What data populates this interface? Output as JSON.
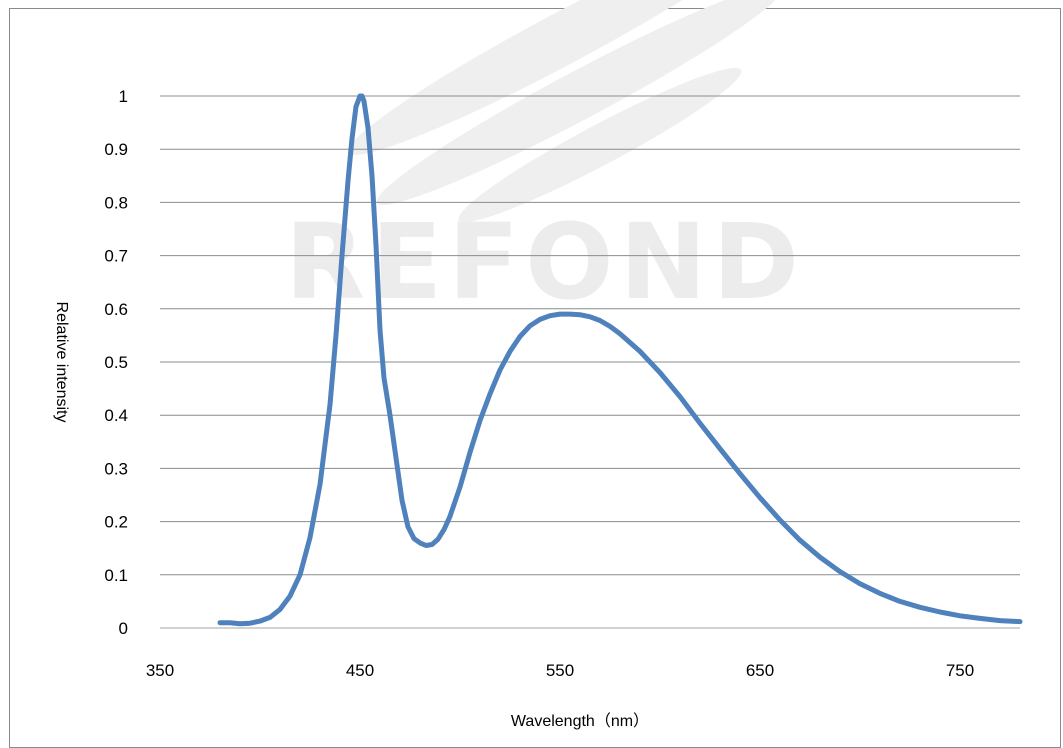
{
  "watermark": {
    "text": "REFOND",
    "color": "#ececec"
  },
  "chart_data": {
    "type": "line",
    "title": "",
    "xlabel": "Wavelength（nm）",
    "ylabel": "Relative intensity",
    "xlim": [
      350,
      780
    ],
    "ylim": [
      0,
      1
    ],
    "x_ticks": [
      "350",
      "450",
      "550",
      "650",
      "750"
    ],
    "y_ticks": [
      "0",
      "0.1",
      "0.2",
      "0.3",
      "0.4",
      "0.5",
      "0.6",
      "0.7",
      "0.8",
      "0.9",
      "1"
    ],
    "grid": "horizontal",
    "legend": "none",
    "series_color": "#4f81bd",
    "series": [
      {
        "name": "",
        "x": [
          380,
          385,
          390,
          395,
          400,
          405,
          410,
          415,
          420,
          425,
          430,
          435,
          438,
          441,
          444,
          446,
          448,
          450,
          451,
          452,
          454,
          456,
          458,
          460,
          462,
          465,
          468,
          471,
          474,
          477,
          480,
          483,
          486,
          489,
          492,
          495,
          500,
          505,
          510,
          515,
          520,
          525,
          530,
          535,
          540,
          545,
          550,
          555,
          560,
          565,
          570,
          575,
          580,
          590,
          600,
          610,
          620,
          630,
          640,
          650,
          660,
          670,
          680,
          690,
          700,
          710,
          720,
          730,
          740,
          750,
          760,
          770,
          780
        ],
        "y": [
          0.01,
          0.01,
          0.008,
          0.009,
          0.013,
          0.02,
          0.035,
          0.06,
          0.1,
          0.17,
          0.27,
          0.42,
          0.55,
          0.7,
          0.84,
          0.92,
          0.98,
          1.0,
          1.0,
          0.99,
          0.94,
          0.85,
          0.72,
          0.56,
          0.47,
          0.4,
          0.32,
          0.24,
          0.19,
          0.168,
          0.16,
          0.155,
          0.157,
          0.167,
          0.185,
          0.21,
          0.265,
          0.33,
          0.39,
          0.44,
          0.485,
          0.52,
          0.548,
          0.568,
          0.58,
          0.587,
          0.59,
          0.59,
          0.589,
          0.585,
          0.578,
          0.567,
          0.553,
          0.52,
          0.48,
          0.435,
          0.385,
          0.337,
          0.29,
          0.245,
          0.203,
          0.165,
          0.133,
          0.106,
          0.083,
          0.065,
          0.05,
          0.039,
          0.03,
          0.023,
          0.018,
          0.014,
          0.012
        ]
      }
    ]
  }
}
